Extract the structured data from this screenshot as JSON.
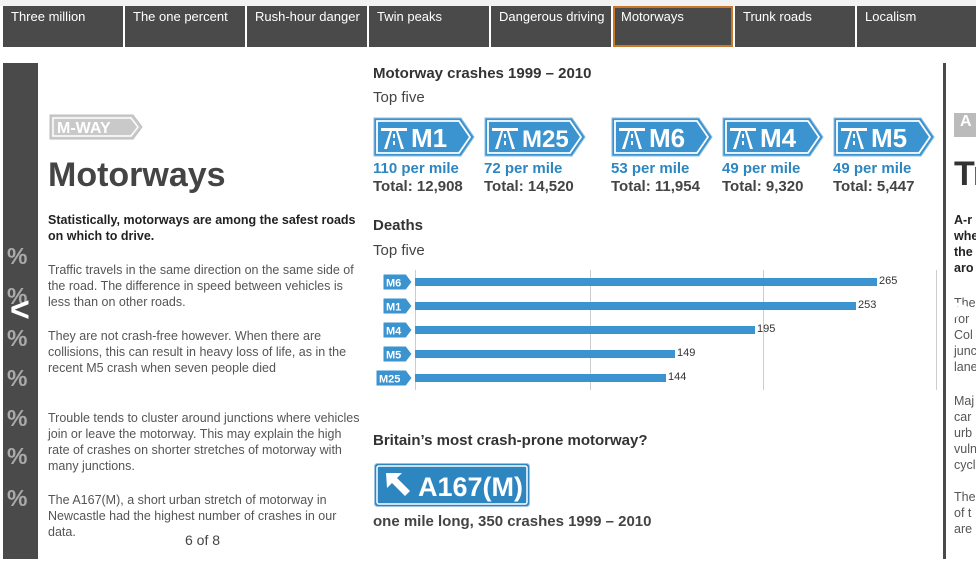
{
  "nav": {
    "tabs": [
      {
        "label": "Three million",
        "active": false
      },
      {
        "label": "The one percent",
        "active": false
      },
      {
        "label": "Rush-hour danger",
        "active": false
      },
      {
        "label": "Twin peaks",
        "active": false
      },
      {
        "label": "Dangerous driving",
        "active": false
      },
      {
        "label": "Motorways",
        "active": true
      },
      {
        "label": "Trunk roads",
        "active": false
      },
      {
        "label": "Localism",
        "active": false
      }
    ]
  },
  "slide": {
    "badge": "M-WAY",
    "title": "Motorways",
    "lead": "Statistically, motorways are among the safest roads on which to drive.",
    "paragraphs": [
      "Traffic travels in the same direction on the same side of the road. The difference in speed between vehicles is less than on other roads.",
      "They are not crash-free however. When there are collisions, this can result in heavy loss of life, as in the recent M5 crash when seven people died",
      "Trouble tends to cluster around junctions where vehicles join or leave the motorway. This may explain the high rate of crashes on shorter stretches of motorway with many junctions.",
      "The A167(M), a short urban stretch of motorway in Newcastle had the highest number of crashes in our data."
    ],
    "pager": "6 of 8"
  },
  "crashes": {
    "heading": "Motorway crashes 1999 – 2010",
    "subheading": "Top five",
    "items": [
      {
        "road": "M1",
        "rate": "110 per mile",
        "total": "Total: 12,908"
      },
      {
        "road": "M25",
        "rate": "72 per mile",
        "total": "Total: 14,520"
      },
      {
        "road": "M6",
        "rate": "53 per mile",
        "total": "Total: 11,954"
      },
      {
        "road": "M4",
        "rate": "49 per mile",
        "total": "Total: 9,320"
      },
      {
        "road": "M5",
        "rate": "49 per mile",
        "total": "Total: 5,447"
      }
    ]
  },
  "deaths": {
    "heading": "Deaths",
    "subheading": "Top five"
  },
  "chart_data": {
    "type": "bar",
    "orientation": "horizontal",
    "categories": [
      "M6",
      "M1",
      "M4",
      "M5",
      "M25"
    ],
    "values": [
      265,
      253,
      195,
      149,
      144
    ],
    "xlim": [
      0,
      300
    ],
    "grid": true
  },
  "crash_prone": {
    "heading": "Britain’s most crash-prone motorway?",
    "sign": "A167(M)",
    "caption": "one mile long, 350 crashes 1999 – 2010"
  },
  "side": {
    "left_peek": [
      "%",
      "%",
      "%",
      "%",
      "%",
      "%",
      "%"
    ],
    "right_peek_title": "Tr",
    "right_peek_text": [
      "A-r",
      "whe",
      "the",
      "aro",
      "The",
      "ror",
      "Col",
      "junc",
      "lane",
      "Maj",
      "car",
      "urb",
      "vuln",
      "cycl",
      "The",
      "of t",
      "are"
    ],
    "right_badge": "A"
  },
  "colors": {
    "accent": "#2e86c1",
    "motorway_blue": "#3b93cf",
    "nav_bg": "#4a4a4a",
    "active_border": "#c8782a"
  }
}
